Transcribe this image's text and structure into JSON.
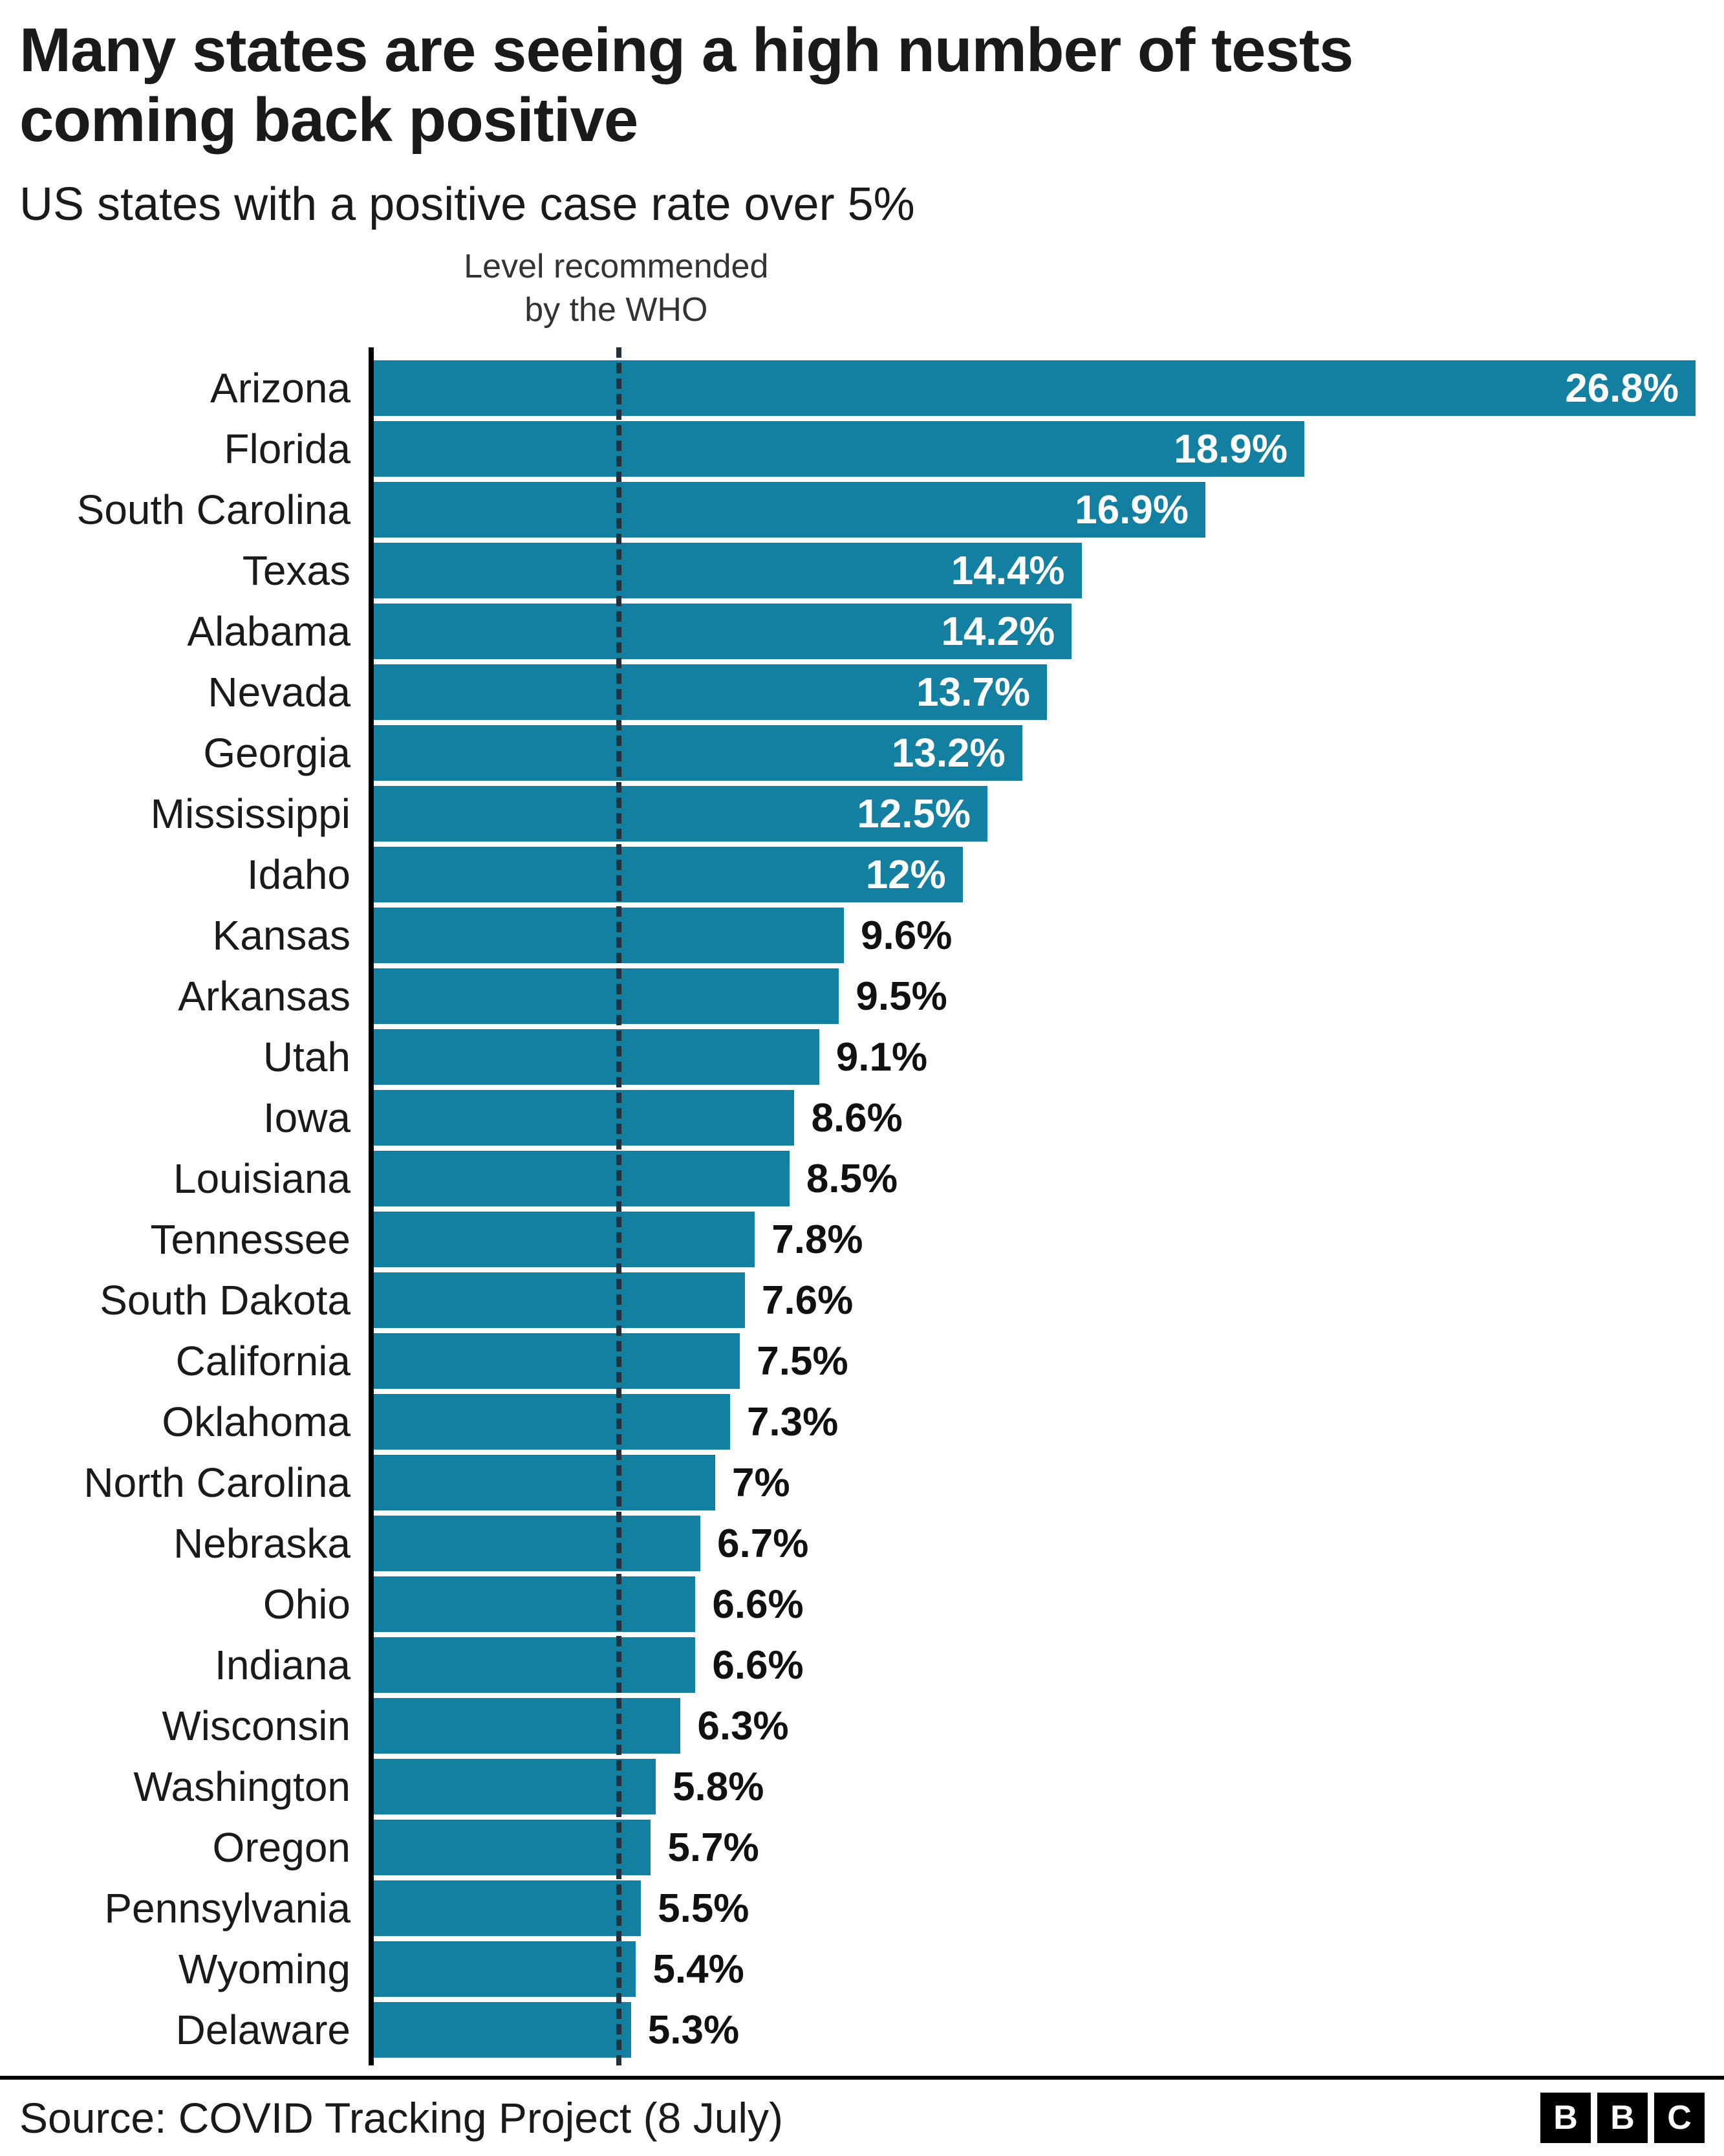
{
  "title": "Many states are seeing a high number of tests coming back positive",
  "subtitle": "US states with a positive case rate over 5%",
  "annotation": "Level recommended\nby the WHO",
  "source": "Source: COVID Tracking Project (8 July)",
  "logo_letters": [
    "B",
    "B",
    "C"
  ],
  "colors": {
    "bar": "#1380A1",
    "axis": "#000000",
    "reference_line": "#23313f"
  },
  "chart_data": {
    "type": "bar",
    "orientation": "horizontal",
    "title": "Many states are seeing a high number of tests coming back positive",
    "subtitle": "US states with a positive case rate over 5%",
    "xlabel": "",
    "ylabel": "",
    "xlim": [
      0,
      26.8
    ],
    "grid": false,
    "legend": false,
    "categories": [
      "Arizona",
      "Florida",
      "South Carolina",
      "Texas",
      "Alabama",
      "Nevada",
      "Georgia",
      "Mississippi",
      "Idaho",
      "Kansas",
      "Arkansas",
      "Utah",
      "Iowa",
      "Louisiana",
      "Tennessee",
      "South Dakota",
      "California",
      "Oklahoma",
      "North Carolina",
      "Nebraska",
      "Ohio",
      "Indiana",
      "Wisconsin",
      "Washington",
      "Oregon",
      "Pennsylvania",
      "Wyoming",
      "Delaware"
    ],
    "values": [
      26.8,
      18.9,
      16.9,
      14.4,
      14.2,
      13.7,
      13.2,
      12.5,
      12,
      9.6,
      9.5,
      9.1,
      8.6,
      8.5,
      7.8,
      7.6,
      7.5,
      7.3,
      7,
      6.7,
      6.6,
      6.6,
      6.3,
      5.8,
      5.7,
      5.5,
      5.4,
      5.3
    ],
    "labels": [
      "26.8%",
      "18.9%",
      "16.9%",
      "14.4%",
      "14.2%",
      "13.7%",
      "13.2%",
      "12.5%",
      "12%",
      "9.6%",
      "9.5%",
      "9.1%",
      "8.6%",
      "8.5%",
      "7.8%",
      "7.6%",
      "7.5%",
      "7.3%",
      "7%",
      "6.7%",
      "6.6%",
      "6.6%",
      "6.3%",
      "5.8%",
      "5.7%",
      "5.5%",
      "5.4%",
      "5.3%"
    ],
    "inside_label_threshold": 12,
    "reference_line": {
      "value": 5,
      "label": "Level recommended by the WHO"
    }
  }
}
